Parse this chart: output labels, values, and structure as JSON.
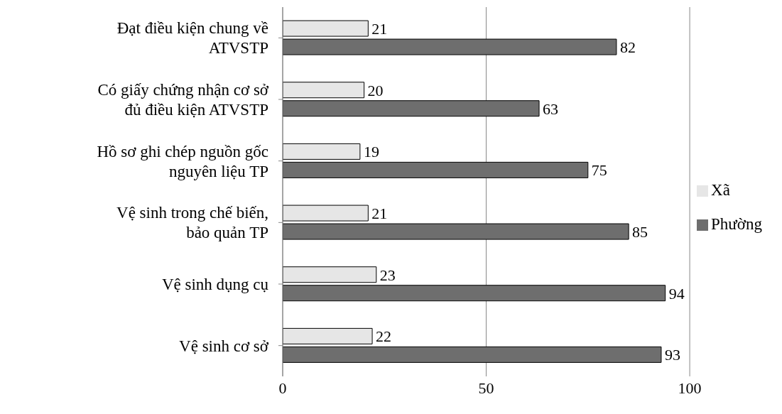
{
  "chart_data": {
    "type": "bar",
    "orientation": "horizontal",
    "categories": [
      "Đạt điều kiện chung về ATVSTP",
      "Có giấy chứng nhận cơ sở đủ điều kiện ATVSTP",
      "Hồ sơ ghi chép nguồn gốc nguyên liệu TP",
      "Vệ sinh trong chế biến, bảo quản TP",
      "Vệ sinh dụng cụ",
      "Vệ sinh cơ sở"
    ],
    "series": [
      {
        "name": "Xã",
        "color": "#e6e6e6",
        "values": [
          21,
          20,
          19,
          21,
          23,
          22
        ]
      },
      {
        "name": "Phường",
        "color": "#6e6e6e",
        "values": [
          82,
          63,
          75,
          85,
          94,
          93
        ]
      }
    ],
    "xlim": [
      0,
      100
    ],
    "xticks": [
      0,
      50,
      100
    ],
    "grid": "x",
    "legend": "right",
    "data_labels": true
  }
}
